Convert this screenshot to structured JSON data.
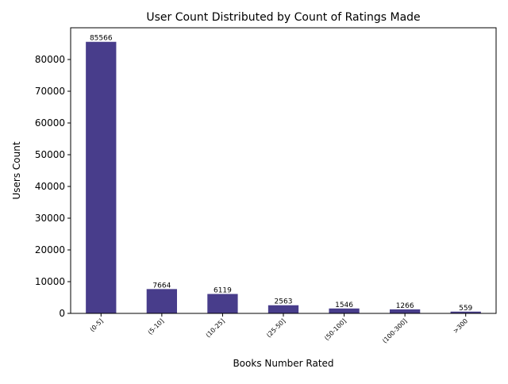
{
  "chart_data": {
    "type": "bar",
    "title": "User Count Distributed by Count of Ratings Made",
    "xlabel": "Books Number Rated",
    "ylabel": "Users Count",
    "categories": [
      "(0-5]",
      "(5-10]",
      "(10-25]",
      "(25-50]",
      "(50-100]",
      "(100-300]",
      ">300"
    ],
    "values": [
      85566,
      7664,
      6119,
      2563,
      1546,
      1266,
      559
    ],
    "data_labels": [
      "85566",
      "7664",
      "6119",
      "2563",
      "1546",
      "1266",
      "559"
    ],
    "ylim": [
      0,
      90000
    ],
    "yticks": [
      0,
      10000,
      20000,
      30000,
      40000,
      50000,
      60000,
      70000,
      80000
    ],
    "ytick_labels": [
      "0",
      "10000",
      "20000",
      "30000",
      "40000",
      "50000",
      "60000",
      "70000",
      "80000"
    ],
    "bar_color": "#483D8B",
    "grid": false,
    "legend": "none"
  }
}
